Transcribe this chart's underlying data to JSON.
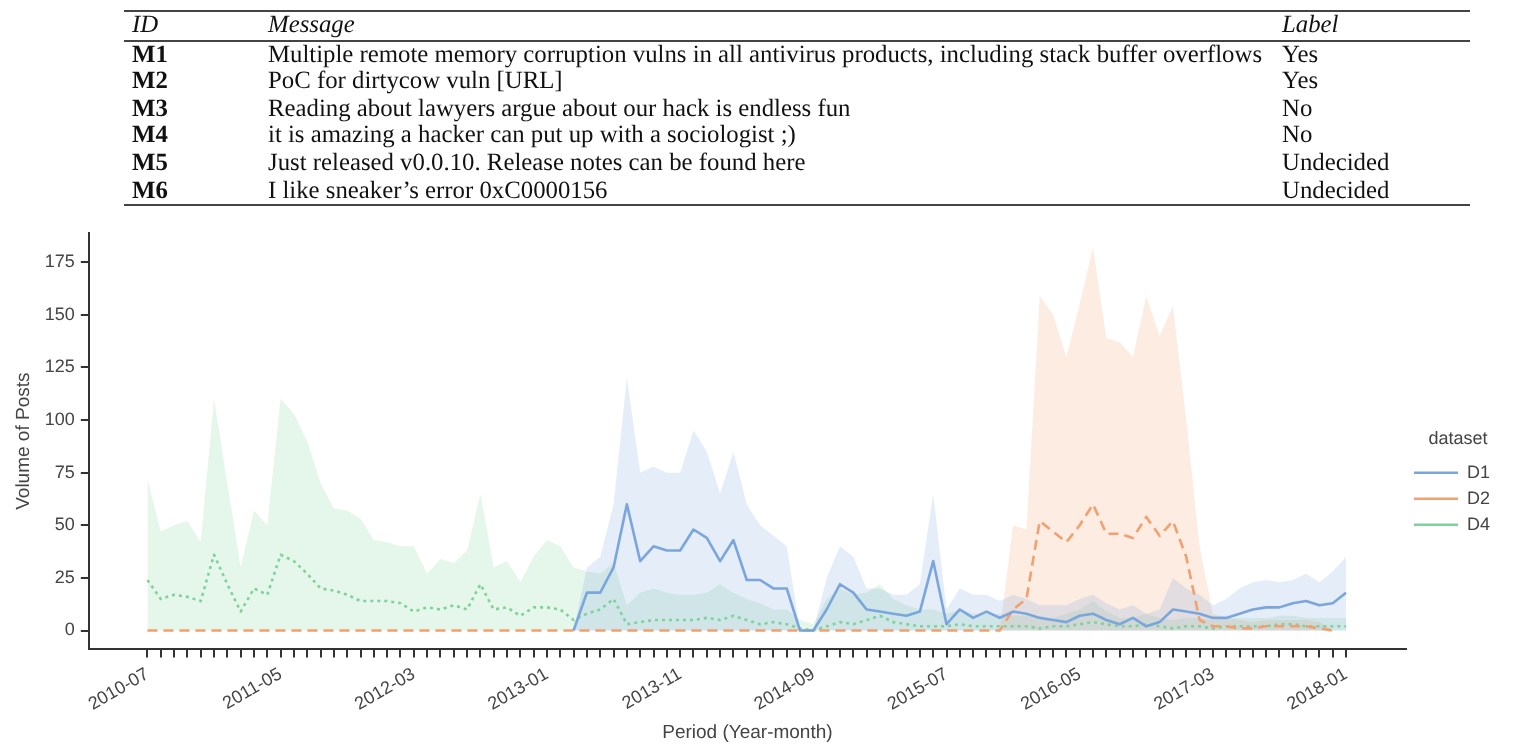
{
  "chart_data": {
    "type": "line",
    "xlabel": "Period (Year-month)",
    "ylabel": "Volume of Posts",
    "legend_title": "dataset",
    "legend": "right",
    "grid": false,
    "marker": "none",
    "annotations": [
      "ID",
      "Message",
      "Label",
      "M1",
      "Multiple remote memory corruption vulns in all antivirus products, including stack buffer overflows",
      "Yes",
      "M2",
      "PoC for dirtycow vuln [URL]",
      "Yes",
      "M3",
      "Reading about lawyers argue about our hack is endless fun",
      "No",
      "M4",
      "it is amazing a hacker can put up with a sociologist ;)",
      "No",
      "M5",
      "Just released v0.0.10. Release notes can be found here",
      "Undecided",
      "M6",
      "I like sneaker’s error 0xC0000156",
      "Undecided"
    ],
    "categories": [
      "2010-07",
      null,
      null,
      null,
      null,
      null,
      null,
      null,
      null,
      null,
      "2011-05",
      null,
      null,
      null,
      null,
      null,
      null,
      null,
      null,
      null,
      "2012-03",
      null,
      null,
      null,
      null,
      null,
      null,
      null,
      null,
      null,
      "2013-01",
      null,
      null,
      null,
      null,
      null,
      null,
      null,
      null,
      null,
      "2013-11",
      null,
      null,
      null,
      null,
      null,
      null,
      null,
      null,
      null,
      "2014-09",
      null,
      null,
      null,
      null,
      null,
      null,
      null,
      null,
      null,
      "2015-07",
      null,
      null,
      null,
      null,
      null,
      null,
      null,
      null,
      null,
      "2016-05",
      null,
      null,
      null,
      null,
      null,
      null,
      null,
      null,
      null,
      "2017-03",
      null,
      null,
      null,
      null,
      null,
      null,
      null,
      null,
      null,
      "2018-01"
    ],
    "ylim": [
      -9,
      189
    ],
    "yticks": [
      0,
      25,
      50,
      75,
      100,
      125,
      150,
      175
    ],
    "series": [
      {
        "name": "D1",
        "color": "#7aa6dc",
        "line_style": "solid",
        "values": [
          null,
          null,
          null,
          null,
          null,
          null,
          null,
          null,
          null,
          null,
          null,
          null,
          null,
          null,
          null,
          null,
          null,
          null,
          null,
          null,
          null,
          null,
          null,
          null,
          null,
          null,
          null,
          null,
          null,
          null,
          null,
          null,
          0,
          18,
          18,
          30,
          60,
          33,
          40,
          38,
          38,
          48,
          44,
          33,
          43,
          24,
          24,
          20,
          20,
          0,
          0,
          10,
          22,
          18,
          10,
          9,
          8,
          7,
          9,
          33,
          3,
          10,
          6,
          9,
          6,
          9,
          8,
          6,
          5,
          4,
          7,
          8,
          5,
          3,
          6,
          2,
          4,
          10,
          9,
          8,
          6,
          6,
          8,
          10,
          11,
          11,
          13,
          14,
          12,
          13,
          18
        ],
        "upper": [
          null,
          null,
          null,
          null,
          null,
          null,
          null,
          null,
          null,
          null,
          null,
          null,
          null,
          null,
          null,
          null,
          null,
          null,
          null,
          null,
          null,
          null,
          null,
          null,
          null,
          null,
          null,
          null,
          null,
          null,
          null,
          null,
          0,
          30,
          35,
          60,
          120,
          75,
          78,
          75,
          75,
          95,
          85,
          65,
          85,
          60,
          50,
          45,
          40,
          0,
          0,
          25,
          40,
          35,
          20,
          20,
          17,
          17,
          22,
          65,
          10,
          20,
          17,
          17,
          14,
          17,
          15,
          12,
          12,
          12,
          15,
          17,
          13,
          10,
          12,
          8,
          10,
          25,
          20,
          17,
          12,
          15,
          20,
          23,
          24,
          23,
          24,
          27,
          23,
          28,
          35
        ],
        "lower": [
          null,
          null,
          null,
          null,
          null,
          null,
          null,
          null,
          null,
          null,
          null,
          null,
          null,
          null,
          null,
          null,
          null,
          null,
          null,
          null,
          null,
          null,
          null,
          null,
          null,
          null,
          null,
          null,
          null,
          null,
          null,
          null,
          0,
          0,
          0,
          0,
          0,
          0,
          0,
          0,
          0,
          0,
          0,
          0,
          0,
          0,
          0,
          0,
          0,
          0,
          0,
          0,
          0,
          0,
          0,
          0,
          0,
          0,
          0,
          0,
          0,
          0,
          0,
          0,
          0,
          0,
          0,
          0,
          0,
          0,
          0,
          0,
          0,
          0,
          0,
          0,
          0,
          0,
          0,
          0,
          0,
          0,
          0,
          0,
          0,
          0,
          0,
          0,
          0,
          0,
          0
        ]
      },
      {
        "name": "D2",
        "color": "#f2a070",
        "line_style": "dashed",
        "values": [
          0,
          0,
          0,
          0,
          0,
          0,
          0,
          0,
          0,
          0,
          0,
          0,
          0,
          0,
          0,
          0,
          0,
          0,
          0,
          0,
          0,
          0,
          0,
          0,
          0,
          0,
          0,
          0,
          0,
          0,
          0,
          0,
          0,
          0,
          0,
          0,
          0,
          0,
          0,
          0,
          0,
          0,
          0,
          0,
          0,
          0,
          0,
          0,
          0,
          0,
          0,
          0,
          0,
          0,
          0,
          0,
          0,
          0,
          0,
          0,
          0,
          0,
          0,
          0,
          0,
          10,
          15,
          52,
          47,
          42,
          50,
          60,
          46,
          46,
          44,
          54,
          45,
          52,
          35,
          5,
          2,
          2,
          1,
          1,
          2,
          2,
          2,
          2,
          1,
          0,
          null
        ],
        "upper": [
          0,
          0,
          0,
          0,
          0,
          0,
          0,
          0,
          0,
          0,
          0,
          0,
          0,
          0,
          0,
          0,
          0,
          0,
          0,
          0,
          0,
          0,
          0,
          0,
          0,
          0,
          0,
          0,
          0,
          0,
          0,
          0,
          0,
          0,
          0,
          0,
          0,
          0,
          0,
          0,
          0,
          0,
          0,
          0,
          0,
          0,
          0,
          0,
          0,
          0,
          0,
          0,
          0,
          0,
          0,
          0,
          0,
          0,
          0,
          0,
          0,
          0,
          0,
          0,
          0,
          50,
          48,
          159,
          150,
          130,
          155,
          182,
          139,
          137,
          130,
          159,
          140,
          154,
          100,
          40,
          8,
          6,
          5,
          4,
          5,
          5,
          5,
          5,
          4,
          0,
          null
        ],
        "lower": [
          0,
          0,
          0,
          0,
          0,
          0,
          0,
          0,
          0,
          0,
          0,
          0,
          0,
          0,
          0,
          0,
          0,
          0,
          0,
          0,
          0,
          0,
          0,
          0,
          0,
          0,
          0,
          0,
          0,
          0,
          0,
          0,
          0,
          0,
          0,
          0,
          0,
          0,
          0,
          0,
          0,
          0,
          0,
          0,
          0,
          0,
          0,
          0,
          0,
          0,
          0,
          0,
          0,
          0,
          0,
          0,
          0,
          0,
          0,
          0,
          0,
          0,
          0,
          0,
          0,
          0,
          0,
          0,
          0,
          0,
          0,
          0,
          0,
          0,
          0,
          0,
          0,
          0,
          0,
          0,
          0,
          0,
          0,
          0,
          0,
          0,
          0,
          0,
          0,
          0,
          null
        ]
      },
      {
        "name": "D4",
        "color": "#7fd29b",
        "line_style": "dotted",
        "values": [
          24,
          15,
          17,
          16,
          14,
          36,
          22,
          9,
          20,
          17,
          36,
          33,
          27,
          20,
          19,
          17,
          14,
          14,
          14,
          13,
          9,
          11,
          10,
          12,
          10,
          22,
          10,
          11,
          7,
          11,
          11,
          10,
          5,
          8,
          10,
          15,
          3,
          4,
          5,
          5,
          5,
          5,
          6,
          5,
          7,
          5,
          3,
          4,
          3,
          1,
          0,
          2,
          4,
          3,
          5,
          7,
          4,
          3,
          2,
          2,
          2,
          3,
          2,
          2,
          2,
          2,
          2,
          1,
          2,
          2,
          3,
          4,
          3,
          2,
          2,
          3,
          2,
          1,
          2,
          2,
          1,
          2,
          2,
          2,
          2,
          3,
          3,
          2,
          2,
          2,
          2
        ],
        "upper": [
          72,
          47,
          50,
          52,
          42,
          110,
          70,
          30,
          57,
          50,
          110,
          103,
          90,
          70,
          58,
          57,
          53,
          43,
          42,
          40,
          40,
          27,
          34,
          32,
          38,
          65,
          30,
          33,
          23,
          35,
          43,
          40,
          30,
          28,
          27,
          32,
          12,
          18,
          20,
          18,
          17,
          17,
          18,
          22,
          18,
          15,
          13,
          10,
          10,
          5,
          3,
          15,
          20,
          17,
          18,
          22,
          15,
          12,
          10,
          10,
          8,
          10,
          8,
          8,
          8,
          7,
          7,
          5,
          6,
          8,
          10,
          14,
          9,
          6,
          6,
          8,
          6,
          5,
          6,
          6,
          5,
          6,
          6,
          6,
          6,
          7,
          7,
          6,
          6,
          6,
          6
        ],
        "lower": [
          0,
          0,
          0,
          0,
          0,
          0,
          0,
          0,
          0,
          0,
          0,
          0,
          0,
          0,
          0,
          0,
          0,
          0,
          0,
          0,
          0,
          0,
          0,
          0,
          0,
          0,
          0,
          0,
          0,
          0,
          0,
          0,
          0,
          0,
          0,
          0,
          0,
          0,
          0,
          0,
          0,
          0,
          0,
          0,
          0,
          0,
          0,
          0,
          0,
          0,
          0,
          0,
          0,
          0,
          0,
          0,
          0,
          0,
          0,
          0,
          0,
          0,
          0,
          0,
          0,
          0,
          0,
          0,
          0,
          0,
          0,
          0,
          0,
          0,
          0,
          0,
          0,
          0,
          0,
          0,
          0,
          0,
          0,
          0,
          0,
          0,
          0,
          0,
          0,
          0,
          0
        ]
      }
    ]
  }
}
